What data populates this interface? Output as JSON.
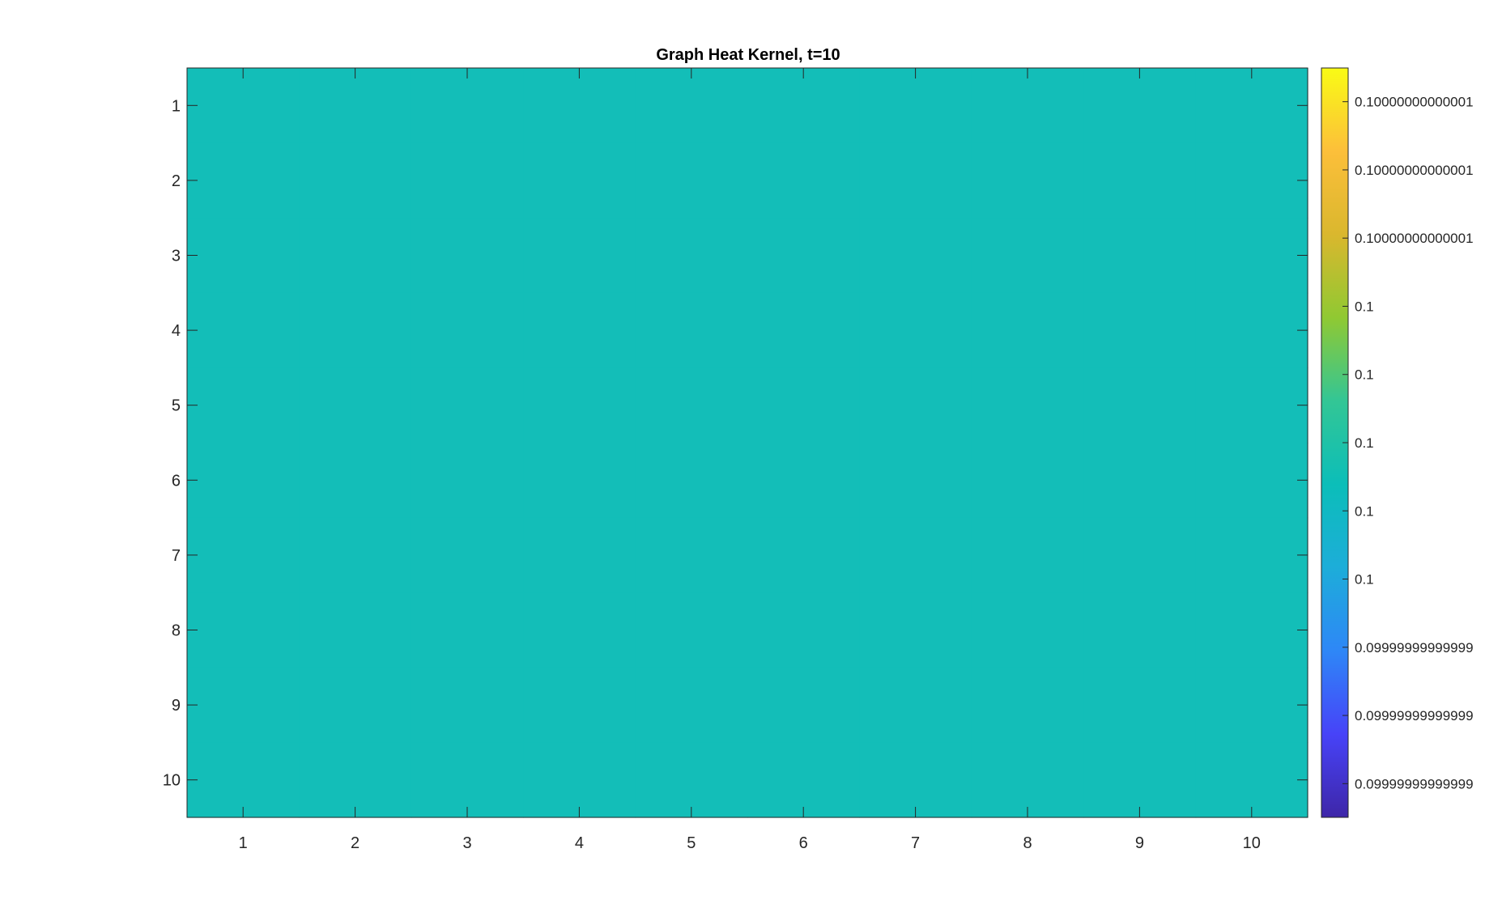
{
  "chart_data": {
    "type": "heatmap",
    "title": "Graph Heat Kernel, t=10",
    "xlabel": "",
    "ylabel": "",
    "x_ticks": [
      "1",
      "2",
      "3",
      "4",
      "5",
      "6",
      "7",
      "8",
      "9",
      "10"
    ],
    "y_ticks": [
      "1",
      "2",
      "3",
      "4",
      "5",
      "6",
      "7",
      "8",
      "9",
      "10"
    ],
    "xlim": [
      0.5,
      10.5
    ],
    "ylim": [
      0.5,
      10.5
    ],
    "y_direction": "reversed",
    "values": [
      [
        0.1,
        0.1,
        0.1,
        0.1,
        0.1,
        0.1,
        0.1,
        0.1,
        0.1,
        0.1
      ],
      [
        0.1,
        0.1,
        0.1,
        0.1,
        0.1,
        0.1,
        0.1,
        0.1,
        0.1,
        0.1
      ],
      [
        0.1,
        0.1,
        0.1,
        0.1,
        0.1,
        0.1,
        0.1,
        0.1,
        0.1,
        0.1
      ],
      [
        0.1,
        0.1,
        0.1,
        0.1,
        0.1,
        0.1,
        0.1,
        0.1,
        0.1,
        0.1
      ],
      [
        0.1,
        0.1,
        0.1,
        0.1,
        0.1,
        0.1,
        0.1,
        0.1,
        0.1,
        0.1
      ],
      [
        0.1,
        0.1,
        0.1,
        0.1,
        0.1,
        0.1,
        0.1,
        0.1,
        0.1,
        0.1
      ],
      [
        0.1,
        0.1,
        0.1,
        0.1,
        0.1,
        0.1,
        0.1,
        0.1,
        0.1,
        0.1
      ],
      [
        0.1,
        0.1,
        0.1,
        0.1,
        0.1,
        0.1,
        0.1,
        0.1,
        0.1,
        0.1
      ],
      [
        0.1,
        0.1,
        0.1,
        0.1,
        0.1,
        0.1,
        0.1,
        0.1,
        0.1,
        0.1
      ],
      [
        0.1,
        0.1,
        0.1,
        0.1,
        0.1,
        0.1,
        0.1,
        0.1,
        0.1,
        0.1
      ]
    ],
    "colormap": "parula",
    "cell_color": "#13beb8",
    "colorbar": {
      "position": "right",
      "tick_labels": [
        "0.10000000000001",
        "0.10000000000001",
        "0.10000000000001",
        "0.1",
        "0.1",
        "0.1",
        "0.1",
        "0.1",
        "0.09999999999999",
        "0.09999999999999",
        "0.09999999999999"
      ],
      "tick_fractions": [
        0.955,
        0.864,
        0.773,
        0.682,
        0.591,
        0.5,
        0.409,
        0.318,
        0.227,
        0.136,
        0.045
      ],
      "colors": [
        "#3e26a8",
        "#4743f8",
        "#2e87f7",
        "#1dadd9",
        "#0bbeb9",
        "#33c695",
        "#90c932",
        "#dab72e",
        "#fcbf3a",
        "#f9fb15"
      ]
    },
    "grid": false,
    "legend": "none"
  }
}
